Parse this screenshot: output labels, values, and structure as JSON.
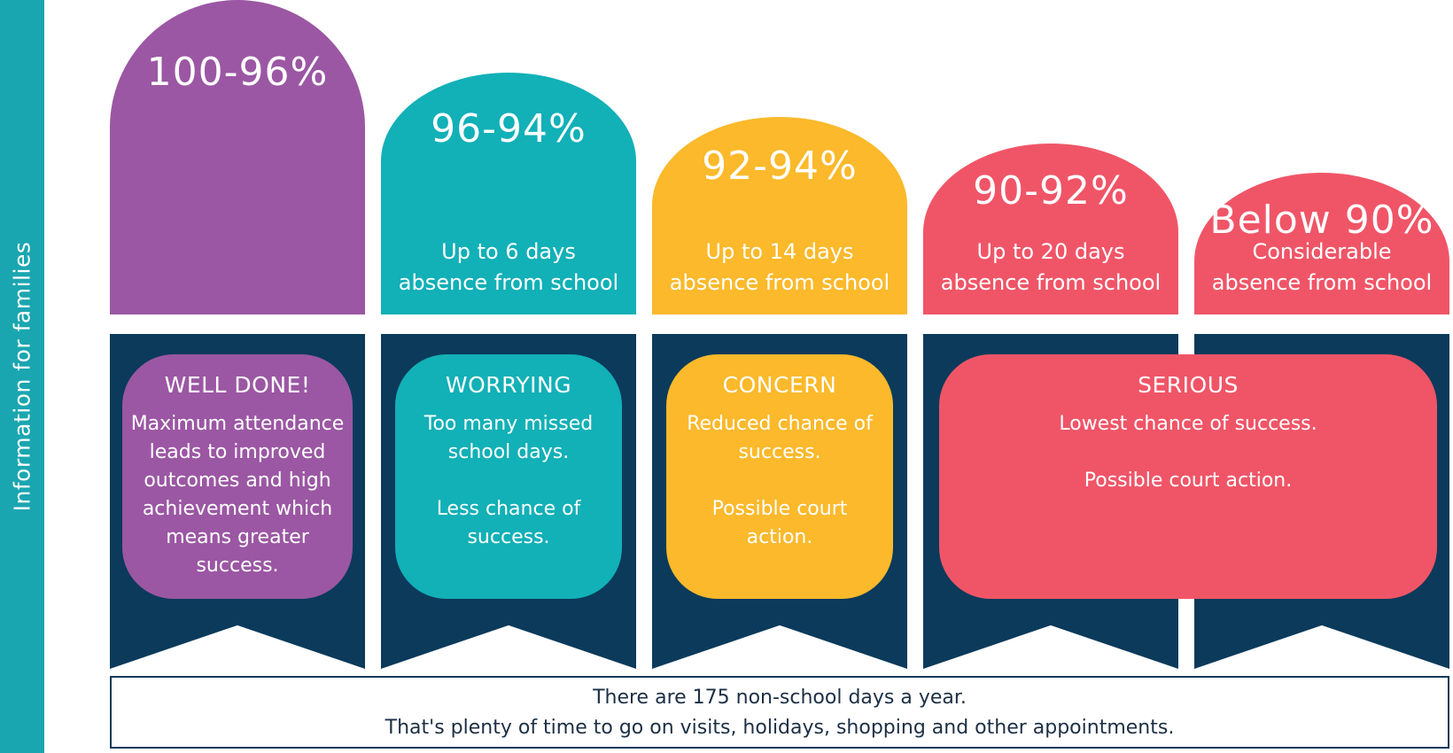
{
  "side_label": "Information for families",
  "colors": {
    "purple": "#9b57a3",
    "teal": "#12b0b7",
    "yellow": "#fbb92b",
    "red": "#f05567",
    "navy": "#0b3a5b",
    "sidebar": "#1aa6b0"
  },
  "columns": [
    {
      "percent": "100-96%",
      "days_line1": "",
      "days_line2": ""
    },
    {
      "percent": "96-94%",
      "days_line1": "Up to 6 days",
      "days_line2": "absence from school"
    },
    {
      "percent": "92-94%",
      "days_line1": "Up to 14 days",
      "days_line2": "absence from school"
    },
    {
      "percent": "90-92%",
      "days_line1": "Up to 20 days",
      "days_line2": "absence from school"
    },
    {
      "percent": "Below 90%",
      "days_line1": "Considerable",
      "days_line2": "absence from school"
    }
  ],
  "ratings": [
    {
      "title": "WELL DONE!",
      "text1": "Maximum attendance leads to improved outcomes and high achievement which means greater success.",
      "text2": ""
    },
    {
      "title": "WORRYING",
      "text1": "Too many missed school days.",
      "text2": "Less chance of success."
    },
    {
      "title": "CONCERN",
      "text1": "Reduced chance of success.",
      "text2": "Possible court action."
    },
    {
      "title": "SERIOUS",
      "text1": "Lowest chance of success.",
      "text2": "Possible court action."
    }
  ],
  "footer": {
    "line1": "There are 175 non-school days a year.",
    "line2": "That's plenty of time to go on visits, holidays, shopping and other appointments."
  }
}
